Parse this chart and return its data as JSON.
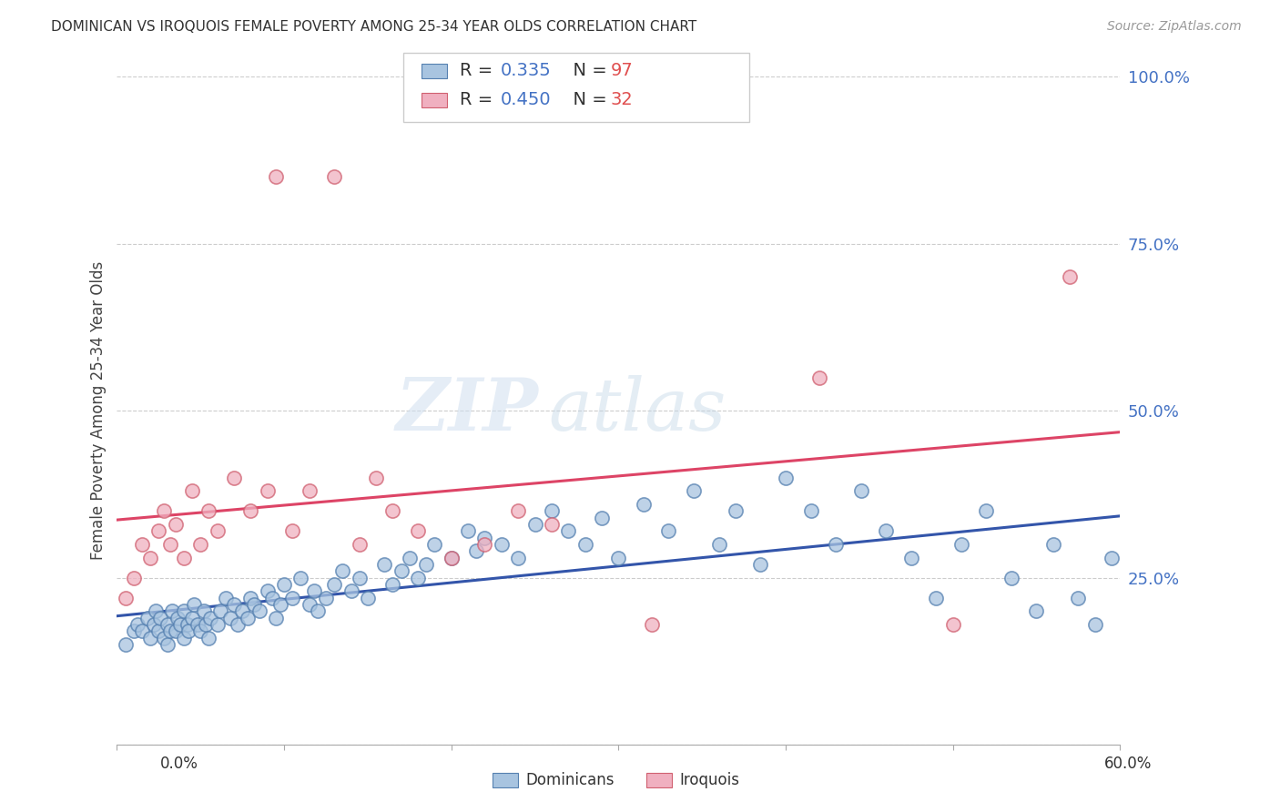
{
  "title": "DOMINICAN VS IROQUOIS FEMALE POVERTY AMONG 25-34 YEAR OLDS CORRELATION CHART",
  "source": "Source: ZipAtlas.com",
  "ylabel": "Female Poverty Among 25-34 Year Olds",
  "xlim": [
    0.0,
    0.6
  ],
  "ylim": [
    0.0,
    1.0
  ],
  "yticks": [
    0.0,
    0.25,
    0.5,
    0.75,
    1.0
  ],
  "ytick_labels": [
    "",
    "25.0%",
    "50.0%",
    "75.0%",
    "100.0%"
  ],
  "blue_R": "0.335",
  "blue_N": "97",
  "pink_R": "0.450",
  "pink_N": "32",
  "blue_fill": "#a8c4e0",
  "blue_edge": "#5580b0",
  "pink_fill": "#f0b0c0",
  "pink_edge": "#d06070",
  "blue_line_color": "#3355aa",
  "pink_line_color": "#dd4466",
  "legend_label_blue": "Dominicans",
  "legend_label_pink": "Iroquois",
  "watermark_zip": "ZIP",
  "watermark_atlas": "atlas",
  "background_color": "#ffffff",
  "title_color": "#333333",
  "source_color": "#999999",
  "grid_color": "#cccccc",
  "axis_label_color": "#4472C4",
  "blue_x": [
    0.005,
    0.01,
    0.012,
    0.015,
    0.018,
    0.02,
    0.022,
    0.023,
    0.025,
    0.026,
    0.028,
    0.03,
    0.03,
    0.032,
    0.033,
    0.035,
    0.036,
    0.038,
    0.04,
    0.04,
    0.042,
    0.043,
    0.045,
    0.046,
    0.048,
    0.05,
    0.052,
    0.053,
    0.055,
    0.056,
    0.06,
    0.062,
    0.065,
    0.068,
    0.07,
    0.072,
    0.075,
    0.078,
    0.08,
    0.082,
    0.085,
    0.09,
    0.093,
    0.095,
    0.098,
    0.1,
    0.105,
    0.11,
    0.115,
    0.118,
    0.12,
    0.125,
    0.13,
    0.135,
    0.14,
    0.145,
    0.15,
    0.16,
    0.165,
    0.17,
    0.175,
    0.18,
    0.185,
    0.19,
    0.2,
    0.21,
    0.215,
    0.22,
    0.23,
    0.24,
    0.25,
    0.26,
    0.27,
    0.28,
    0.29,
    0.3,
    0.315,
    0.33,
    0.345,
    0.36,
    0.37,
    0.385,
    0.4,
    0.415,
    0.43,
    0.445,
    0.46,
    0.475,
    0.49,
    0.505,
    0.52,
    0.535,
    0.55,
    0.56,
    0.575,
    0.585,
    0.595
  ],
  "blue_y": [
    0.15,
    0.17,
    0.18,
    0.17,
    0.19,
    0.16,
    0.18,
    0.2,
    0.17,
    0.19,
    0.16,
    0.15,
    0.18,
    0.17,
    0.2,
    0.17,
    0.19,
    0.18,
    0.16,
    0.2,
    0.18,
    0.17,
    0.19,
    0.21,
    0.18,
    0.17,
    0.2,
    0.18,
    0.16,
    0.19,
    0.18,
    0.2,
    0.22,
    0.19,
    0.21,
    0.18,
    0.2,
    0.19,
    0.22,
    0.21,
    0.2,
    0.23,
    0.22,
    0.19,
    0.21,
    0.24,
    0.22,
    0.25,
    0.21,
    0.23,
    0.2,
    0.22,
    0.24,
    0.26,
    0.23,
    0.25,
    0.22,
    0.27,
    0.24,
    0.26,
    0.28,
    0.25,
    0.27,
    0.3,
    0.28,
    0.32,
    0.29,
    0.31,
    0.3,
    0.28,
    0.33,
    0.35,
    0.32,
    0.3,
    0.34,
    0.28,
    0.36,
    0.32,
    0.38,
    0.3,
    0.35,
    0.27,
    0.4,
    0.35,
    0.3,
    0.38,
    0.32,
    0.28,
    0.22,
    0.3,
    0.35,
    0.25,
    0.2,
    0.3,
    0.22,
    0.18,
    0.28
  ],
  "pink_x": [
    0.005,
    0.01,
    0.015,
    0.02,
    0.025,
    0.028,
    0.032,
    0.035,
    0.04,
    0.045,
    0.05,
    0.055,
    0.06,
    0.07,
    0.08,
    0.09,
    0.095,
    0.105,
    0.115,
    0.13,
    0.145,
    0.155,
    0.165,
    0.18,
    0.2,
    0.22,
    0.24,
    0.26,
    0.32,
    0.42,
    0.5,
    0.57
  ],
  "pink_y": [
    0.22,
    0.25,
    0.3,
    0.28,
    0.32,
    0.35,
    0.3,
    0.33,
    0.28,
    0.38,
    0.3,
    0.35,
    0.32,
    0.4,
    0.35,
    0.38,
    0.85,
    0.32,
    0.38,
    0.85,
    0.3,
    0.4,
    0.35,
    0.32,
    0.28,
    0.3,
    0.35,
    0.33,
    0.18,
    0.55,
    0.18,
    0.7
  ]
}
